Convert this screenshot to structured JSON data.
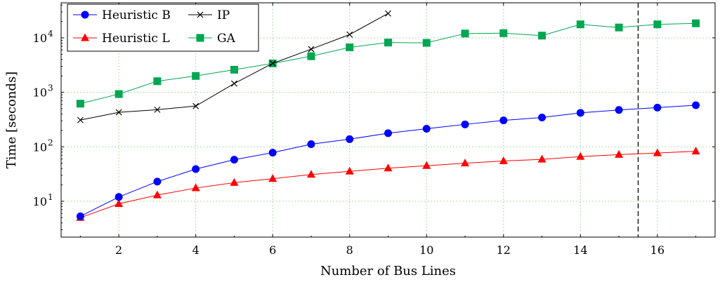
{
  "chart_data": {
    "type": "line",
    "xlabel": "Number of Bus Lines",
    "ylabel": "Time [seconds]",
    "y_scale": "log",
    "xlim": [
      0.5,
      17.5
    ],
    "ylim": [
      2.2,
      44000
    ],
    "x_ticks": [
      2,
      4,
      6,
      8,
      10,
      12,
      14,
      16
    ],
    "y_ticks": [
      {
        "value": 10,
        "base": "10",
        "exp": "1"
      },
      {
        "value": 100,
        "base": "10",
        "exp": "2"
      },
      {
        "value": 1000,
        "base": "10",
        "exp": "3"
      },
      {
        "value": 10000,
        "base": "10",
        "exp": "4"
      }
    ],
    "grid": true,
    "grid_style": "dotted",
    "vertical_reference_line": {
      "x": 15.5,
      "style": "dashed"
    },
    "legend_position": "top-left",
    "series": [
      {
        "name": "Heuristic B",
        "color": "#0000ff",
        "marker": "circle",
        "x": [
          1,
          2,
          3,
          4,
          5,
          6,
          7,
          8,
          9,
          10,
          11,
          12,
          13,
          14,
          15,
          16,
          17
        ],
        "y": [
          5.3,
          12,
          23,
          39,
          58,
          78,
          112,
          138,
          178,
          215,
          258,
          305,
          345,
          420,
          475,
          525,
          580
        ]
      },
      {
        "name": "IP",
        "color": "#000000",
        "marker": "cross",
        "x": [
          1,
          2,
          3,
          4,
          5,
          6,
          7,
          8,
          9
        ],
        "y": [
          310,
          430,
          480,
          560,
          1450,
          3400,
          6200,
          11500,
          28000
        ]
      },
      {
        "name": "Heuristic L",
        "color": "#ff0000",
        "marker": "triangle",
        "x": [
          1,
          2,
          3,
          4,
          5,
          6,
          7,
          8,
          9,
          10,
          11,
          12,
          13,
          14,
          15,
          16,
          17
        ],
        "y": [
          5.0,
          9.0,
          13,
          17.5,
          22,
          26,
          31,
          35.5,
          40.5,
          45,
          50,
          55,
          59,
          66,
          72,
          77,
          83
        ]
      },
      {
        "name": "GA",
        "color": "#00a651",
        "marker": "square",
        "x": [
          1,
          2,
          3,
          4,
          5,
          6,
          7,
          8,
          9,
          10,
          11,
          12,
          13,
          14,
          15,
          16,
          17
        ],
        "y": [
          620,
          930,
          1600,
          2000,
          2600,
          3400,
          4600,
          6700,
          8200,
          8100,
          12000,
          12200,
          11000,
          17700,
          15500,
          17700,
          18500
        ]
      }
    ]
  }
}
